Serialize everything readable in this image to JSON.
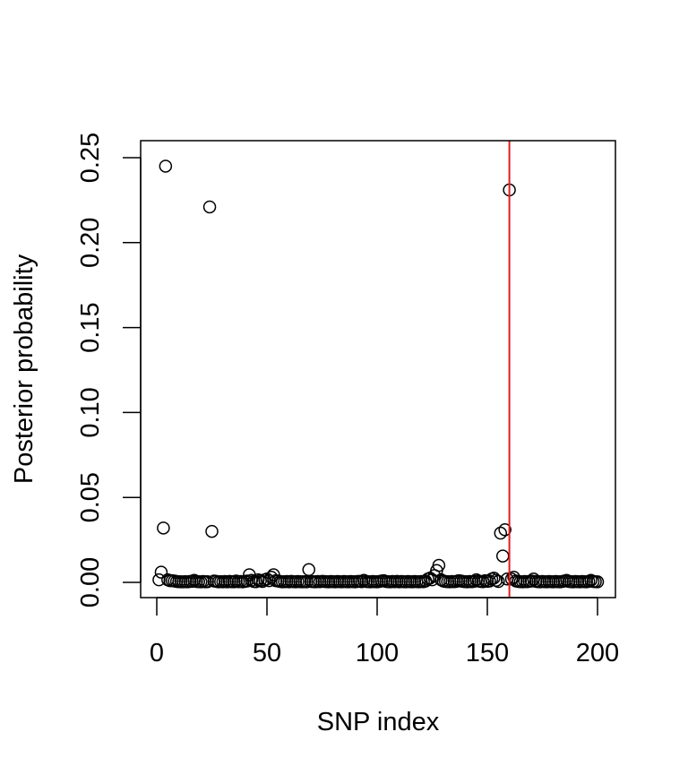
{
  "chart_data": {
    "type": "scatter",
    "title": "",
    "xlabel": "SNP index",
    "ylabel": "Posterior probability",
    "xlim": [
      0,
      200
    ],
    "ylim": [
      0,
      0.25
    ],
    "x_ticks": [
      0,
      50,
      100,
      150,
      200
    ],
    "x_tick_labels": [
      "0",
      "50",
      "100",
      "150",
      "200"
    ],
    "y_ticks": [
      0,
      0.05,
      0.1,
      0.15,
      0.2,
      0.25
    ],
    "y_tick_labels": [
      "0.00",
      "0.05",
      "0.10",
      "0.15",
      "0.20",
      "0.25"
    ],
    "marker": "open-circle",
    "vline": {
      "x": 160,
      "color": "#e41a1c"
    },
    "points": [
      [
        1,
        0.0015
      ],
      [
        2,
        0.006
      ],
      [
        3,
        0.032
      ],
      [
        4,
        0.245
      ],
      [
        5,
        0.0015
      ],
      [
        6,
        0.001
      ],
      [
        7,
        0.001
      ],
      [
        8,
        0.0008
      ],
      [
        9,
        0.0005
      ],
      [
        10,
        0.0004
      ],
      [
        11,
        0.0003
      ],
      [
        12,
        0.0003
      ],
      [
        13,
        0.0004
      ],
      [
        14,
        0.0003
      ],
      [
        15,
        0.0005
      ],
      [
        16,
        0.0006
      ],
      [
        17,
        0.0012
      ],
      [
        18,
        0.0005
      ],
      [
        19,
        0.0004
      ],
      [
        20,
        0.0003
      ],
      [
        21,
        0.0005
      ],
      [
        22,
        0.0003
      ],
      [
        23,
        0.0004
      ],
      [
        24,
        0.221
      ],
      [
        25,
        0.03
      ],
      [
        26,
        0.0008
      ],
      [
        27,
        0.0006
      ],
      [
        28,
        0.0003
      ],
      [
        29,
        0.0004
      ],
      [
        30,
        0.0003
      ],
      [
        31,
        0.0005
      ],
      [
        32,
        0.0003
      ],
      [
        33,
        0.0006
      ],
      [
        34,
        0.0004
      ],
      [
        35,
        0.0003
      ],
      [
        36,
        0.0008
      ],
      [
        37,
        0.0004
      ],
      [
        38,
        0.0005
      ],
      [
        39,
        0.0003
      ],
      [
        40,
        0.0006
      ],
      [
        41,
        0.0008
      ],
      [
        42,
        0.0045
      ],
      [
        43,
        0.0012
      ],
      [
        44,
        0.0005
      ],
      [
        45,
        0.0004
      ],
      [
        46,
        0.0015
      ],
      [
        47,
        0.001
      ],
      [
        48,
        0.0005
      ],
      [
        49,
        0.0015
      ],
      [
        50,
        0.002
      ],
      [
        51,
        0.001
      ],
      [
        52,
        0.003
      ],
      [
        53,
        0.0045
      ],
      [
        54,
        0.001
      ],
      [
        55,
        0.0008
      ],
      [
        56,
        0.0005
      ],
      [
        57,
        0.0003
      ],
      [
        58,
        0.0004
      ],
      [
        59,
        0.0005
      ],
      [
        60,
        0.0003
      ],
      [
        61,
        0.0006
      ],
      [
        62,
        0.0004
      ],
      [
        63,
        0.0003
      ],
      [
        64,
        0.0005
      ],
      [
        65,
        0.0004
      ],
      [
        66,
        0.0003
      ],
      [
        67,
        0.0004
      ],
      [
        68,
        0.0003
      ],
      [
        69,
        0.0075
      ],
      [
        70,
        0.0005
      ],
      [
        71,
        0.0004
      ],
      [
        72,
        0.0003
      ],
      [
        73,
        0.0005
      ],
      [
        74,
        0.0004
      ],
      [
        75,
        0.0006
      ],
      [
        76,
        0.0005
      ],
      [
        77,
        0.0004
      ],
      [
        78,
        0.0003
      ],
      [
        79,
        0.0005
      ],
      [
        80,
        0.0004
      ],
      [
        81,
        0.0003
      ],
      [
        82,
        0.0005
      ],
      [
        83,
        0.0004
      ],
      [
        84,
        0.0003
      ],
      [
        85,
        0.0005
      ],
      [
        86,
        0.0004
      ],
      [
        87,
        0.0003
      ],
      [
        88,
        0.0005
      ],
      [
        89,
        0.0004
      ],
      [
        90,
        0.0003
      ],
      [
        91,
        0.0005
      ],
      [
        92,
        0.0006
      ],
      [
        93,
        0.0004
      ],
      [
        94,
        0.0012
      ],
      [
        95,
        0.0005
      ],
      [
        96,
        0.0004
      ],
      [
        97,
        0.0003
      ],
      [
        98,
        0.0005
      ],
      [
        99,
        0.0004
      ],
      [
        100,
        0.0003
      ],
      [
        101,
        0.0005
      ],
      [
        102,
        0.0008
      ],
      [
        103,
        0.001
      ],
      [
        104,
        0.0005
      ],
      [
        105,
        0.0004
      ],
      [
        106,
        0.0003
      ],
      [
        107,
        0.0005
      ],
      [
        108,
        0.0004
      ],
      [
        109,
        0.0006
      ],
      [
        110,
        0.0003
      ],
      [
        111,
        0.0005
      ],
      [
        112,
        0.0004
      ],
      [
        113,
        0.0003
      ],
      [
        114,
        0.0005
      ],
      [
        115,
        0.0004
      ],
      [
        116,
        0.0003
      ],
      [
        117,
        0.0005
      ],
      [
        118,
        0.0004
      ],
      [
        119,
        0.0003
      ],
      [
        120,
        0.0005
      ],
      [
        121,
        0.0004
      ],
      [
        122,
        0.0008
      ],
      [
        123,
        0.002
      ],
      [
        124,
        0.0025
      ],
      [
        125,
        0.0015
      ],
      [
        126,
        0.004
      ],
      [
        127,
        0.007
      ],
      [
        128,
        0.01
      ],
      [
        129,
        0.0015
      ],
      [
        130,
        0.0008
      ],
      [
        131,
        0.0005
      ],
      [
        132,
        0.0004
      ],
      [
        133,
        0.0003
      ],
      [
        134,
        0.0005
      ],
      [
        135,
        0.0004
      ],
      [
        136,
        0.0006
      ],
      [
        137,
        0.001
      ],
      [
        138,
        0.0008
      ],
      [
        139,
        0.0005
      ],
      [
        140,
        0.0004
      ],
      [
        141,
        0.0003
      ],
      [
        142,
        0.0005
      ],
      [
        143,
        0.0004
      ],
      [
        144,
        0.0006
      ],
      [
        145,
        0.0015
      ],
      [
        146,
        0.0008
      ],
      [
        147,
        0.0005
      ],
      [
        148,
        0.0004
      ],
      [
        149,
        0.001
      ],
      [
        150,
        0.0006
      ],
      [
        151,
        0.0008
      ],
      [
        152,
        0.002
      ],
      [
        153,
        0.0025
      ],
      [
        154,
        0.0012
      ],
      [
        155,
        0.0005
      ],
      [
        156,
        0.029
      ],
      [
        157,
        0.0155
      ],
      [
        158,
        0.031
      ],
      [
        159,
        0.002
      ],
      [
        160,
        0.231
      ],
      [
        161,
        0.002
      ],
      [
        162,
        0.003
      ],
      [
        163,
        0.0008
      ],
      [
        164,
        0.0005
      ],
      [
        165,
        0.0004
      ],
      [
        166,
        0.0003
      ],
      [
        167,
        0.0005
      ],
      [
        168,
        0.0004
      ],
      [
        169,
        0.0006
      ],
      [
        170,
        0.0008
      ],
      [
        171,
        0.002
      ],
      [
        172,
        0.0006
      ],
      [
        173,
        0.0004
      ],
      [
        174,
        0.0003
      ],
      [
        175,
        0.0005
      ],
      [
        176,
        0.0004
      ],
      [
        177,
        0.0003
      ],
      [
        178,
        0.0005
      ],
      [
        179,
        0.0004
      ],
      [
        180,
        0.0003
      ],
      [
        181,
        0.0005
      ],
      [
        182,
        0.0004
      ],
      [
        183,
        0.0003
      ],
      [
        184,
        0.0005
      ],
      [
        185,
        0.0008
      ],
      [
        186,
        0.0012
      ],
      [
        187,
        0.0005
      ],
      [
        188,
        0.0004
      ],
      [
        189,
        0.0003
      ],
      [
        190,
        0.0005
      ],
      [
        191,
        0.0004
      ],
      [
        192,
        0.0003
      ],
      [
        193,
        0.0005
      ],
      [
        194,
        0.0004
      ],
      [
        195,
        0.0003
      ],
      [
        196,
        0.0006
      ],
      [
        197,
        0.0012
      ],
      [
        198,
        0.0005
      ],
      [
        199,
        0.0004
      ],
      [
        200,
        0.0003
      ]
    ]
  }
}
